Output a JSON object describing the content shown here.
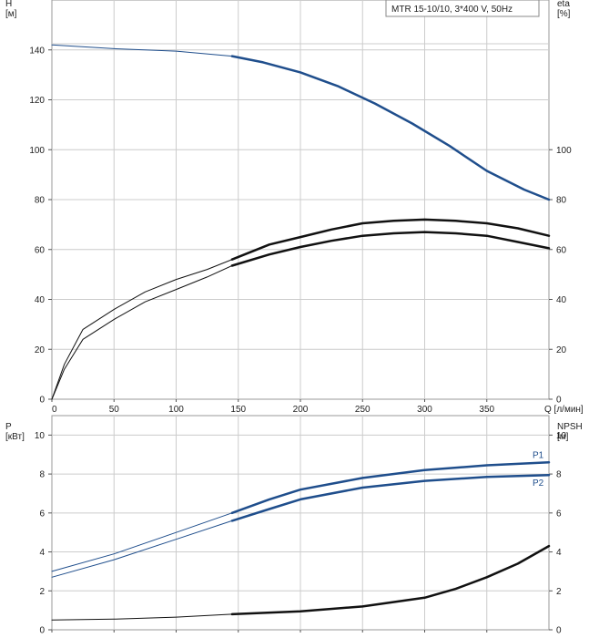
{
  "chart_data": [
    {
      "type": "line",
      "title": "MTR 15-10/10, 3*400 V, 50Hz",
      "ylabel_left": [
        "H",
        "[м]"
      ],
      "ylabel_right": [
        "eta",
        "[%]"
      ],
      "xlabel": "Q [л/мин]",
      "xlim": [
        0,
        400
      ],
      "xticks": [
        0,
        50,
        100,
        150,
        200,
        250,
        300,
        350
      ],
      "xtick_labels": [
        "0",
        "50",
        "100",
        "150",
        "200",
        "250",
        "300",
        "350"
      ],
      "ylim": [
        0,
        160
      ],
      "yticks_left": [
        0,
        20,
        40,
        60,
        80,
        100,
        120,
        140
      ],
      "yticks_left_labels": [
        "0",
        "20",
        "40",
        "60",
        "80",
        "100",
        "120",
        "140"
      ],
      "yticks_right": [
        0,
        20,
        40,
        60,
        80,
        100
      ],
      "yticks_right_labels": [
        "0",
        "20",
        "40",
        "60",
        "80",
        "100"
      ],
      "grid": true,
      "series": [
        {
          "color": "#1f4e8c",
          "x": [
            0,
            50,
            100,
            145,
            170,
            200,
            230,
            260,
            290,
            320,
            350,
            380,
            400
          ],
          "y": [
            142,
            140.5,
            139.5,
            137.5,
            135,
            131,
            125.5,
            118.5,
            110.5,
            101.5,
            91.5,
            84,
            80
          ],
          "emphasis_from": 145
        },
        {
          "color": "#111111",
          "x": [
            0,
            10,
            25,
            50,
            75,
            100,
            125,
            145,
            175,
            200,
            225,
            250,
            275,
            300,
            325,
            350,
            375,
            400
          ],
          "y": [
            0,
            14,
            28,
            36,
            43,
            48,
            52,
            56,
            62,
            65,
            68,
            70.5,
            71.5,
            72,
            71.5,
            70.5,
            68.5,
            65.5
          ],
          "emphasis_from": 145
        },
        {
          "color": "#111111",
          "x": [
            0,
            10,
            25,
            50,
            75,
            100,
            125,
            145,
            175,
            200,
            225,
            250,
            275,
            300,
            325,
            350,
            375,
            400
          ],
          "y": [
            0,
            12,
            24,
            32,
            39,
            44,
            49,
            53.5,
            58,
            61,
            63.5,
            65.5,
            66.5,
            67,
            66.5,
            65.5,
            63,
            60.5
          ],
          "emphasis_from": 145
        }
      ]
    },
    {
      "type": "line",
      "ylabel_left": [
        "P",
        "[кВт]"
      ],
      "ylabel_right": [
        "NPSH",
        "[м]"
      ],
      "xlim": [
        0,
        400
      ],
      "xticks": [
        0,
        50,
        100,
        150,
        200,
        250,
        300,
        350
      ],
      "ylim": [
        0,
        11
      ],
      "yticks_left": [
        0,
        2,
        4,
        6,
        8,
        10
      ],
      "yticks_left_labels": [
        "0",
        "2",
        "4",
        "6",
        "8",
        "10"
      ],
      "yticks_right": [
        0,
        2,
        4,
        6,
        8,
        10
      ],
      "yticks_right_labels": [
        "0",
        "2",
        "4",
        "6",
        "8",
        "10"
      ],
      "grid": true,
      "series": [
        {
          "name": "P1",
          "color": "#1f4e8c",
          "x": [
            0,
            50,
            100,
            145,
            175,
            200,
            250,
            300,
            350,
            400
          ],
          "y": [
            3,
            3.9,
            5,
            6,
            6.7,
            7.2,
            7.8,
            8.2,
            8.45,
            8.6
          ],
          "emphasis_from": 145
        },
        {
          "name": "P2",
          "color": "#1f4e8c",
          "x": [
            0,
            50,
            100,
            145,
            175,
            200,
            250,
            300,
            350,
            400
          ],
          "y": [
            2.7,
            3.6,
            4.65,
            5.6,
            6.2,
            6.7,
            7.3,
            7.65,
            7.85,
            7.95
          ],
          "emphasis_from": 145
        },
        {
          "color": "#111111",
          "x": [
            0,
            50,
            100,
            145,
            200,
            250,
            300,
            325,
            350,
            375,
            400
          ],
          "y": [
            0.5,
            0.55,
            0.65,
            0.8,
            0.95,
            1.2,
            1.65,
            2.1,
            2.7,
            3.4,
            4.3
          ],
          "emphasis_from": 145
        }
      ]
    }
  ]
}
